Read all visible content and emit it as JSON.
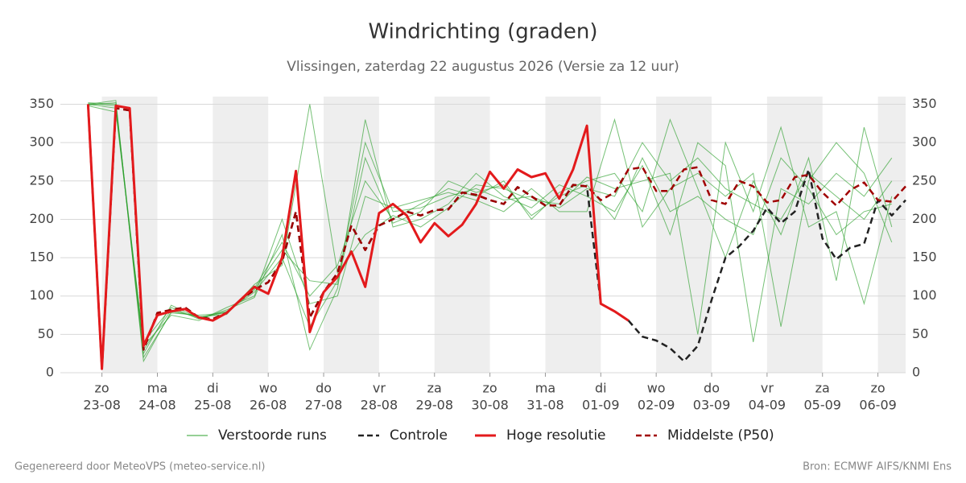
{
  "chart_data": {
    "type": "line",
    "title": "Windrichting (graden)",
    "subtitle": "Vlissingen, zaterdag 22 augustus 2026 (Versie za 12 uur)",
    "footer_left": "Gegenereerd door MeteoVPS (meteo-service.nl)",
    "footer_right": "Bron: ECMWF AIFS/KNMI Ens",
    "xlim": [
      -18,
      348
    ],
    "ylim": [
      0,
      360
    ],
    "yticks": [
      0,
      50,
      100,
      150,
      200,
      250,
      300,
      350
    ],
    "xticks": [
      {
        "value": 0,
        "label": "zo",
        "sublabel": "23-08"
      },
      {
        "value": 24,
        "label": "ma",
        "sublabel": "24-08"
      },
      {
        "value": 48,
        "label": "di",
        "sublabel": "25-08"
      },
      {
        "value": 72,
        "label": "wo",
        "sublabel": "26-08"
      },
      {
        "value": 96,
        "label": "do",
        "sublabel": "27-08"
      },
      {
        "value": 120,
        "label": "vr",
        "sublabel": "28-08"
      },
      {
        "value": 144,
        "label": "za",
        "sublabel": "29-08"
      },
      {
        "value": 168,
        "label": "zo",
        "sublabel": "30-08"
      },
      {
        "value": 192,
        "label": "ma",
        "sublabel": "31-08"
      },
      {
        "value": 216,
        "label": "di",
        "sublabel": "01-09"
      },
      {
        "value": 240,
        "label": "wo",
        "sublabel": "02-09"
      },
      {
        "value": 264,
        "label": "do",
        "sublabel": "03-09"
      },
      {
        "value": 288,
        "label": "vr",
        "sublabel": "04-09"
      },
      {
        "value": 312,
        "label": "za",
        "sublabel": "05-09"
      },
      {
        "value": 336,
        "label": "zo",
        "sublabel": "06-09"
      }
    ],
    "grid": true,
    "ensemble": {
      "name": "Verstoorde runs",
      "color": "#2ca02c",
      "x": [
        -6,
        6,
        18,
        30,
        42,
        54,
        66,
        78,
        90,
        102,
        114,
        126,
        138,
        150,
        162,
        174,
        186,
        198,
        210,
        222,
        234,
        246,
        258,
        270,
        282,
        294,
        306,
        318,
        330,
        342
      ],
      "members": [
        [
          350,
          345,
          30,
          82,
          72,
          80,
          105,
          150,
          60,
          120,
          300,
          210,
          215,
          230,
          240,
          225,
          230,
          215,
          240,
          230,
          300,
          250,
          280,
          240,
          220,
          200,
          260,
          230,
          200,
          250
        ],
        [
          352,
          350,
          20,
          78,
          75,
          78,
          110,
          170,
          100,
          140,
          250,
          200,
          220,
          240,
          230,
          250,
          200,
          235,
          250,
          260,
          210,
          330,
          240,
          150,
          250,
          180,
          280,
          120,
          320,
          190
        ],
        [
          348,
          340,
          40,
          85,
          70,
          82,
          98,
          180,
          30,
          110,
          330,
          190,
          200,
          220,
          260,
          230,
          215,
          245,
          230,
          210,
          270,
          180,
          300,
          270,
          40,
          240,
          220,
          260,
          230,
          280
        ],
        [
          350,
          355,
          15,
          80,
          73,
          76,
          115,
          140,
          350,
          130,
          180,
          205,
          190,
          215,
          245,
          240,
          225,
          220,
          255,
          240,
          250,
          260,
          50,
          300,
          210,
          320,
          190,
          210,
          90,
          230
        ],
        [
          351,
          348,
          35,
          75,
          68,
          85,
          100,
          200,
          90,
          100,
          230,
          215,
          225,
          235,
          225,
          210,
          240,
          210,
          210,
          330,
          190,
          240,
          260,
          230,
          260,
          60,
          250,
          300,
          260,
          170
        ],
        [
          349,
          352,
          25,
          88,
          71,
          79,
          108,
          160,
          120,
          115,
          280,
          195,
          210,
          250,
          235,
          245,
          205,
          230,
          245,
          200,
          280,
          210,
          230,
          200,
          180,
          280,
          240,
          180,
          210,
          220
        ]
      ]
    },
    "x": [
      -6,
      0,
      6,
      12,
      18,
      24,
      30,
      36,
      42,
      48,
      54,
      60,
      66,
      72,
      78,
      84,
      90,
      96,
      102,
      108,
      114,
      120,
      126,
      132,
      138,
      144,
      150,
      156,
      162,
      168,
      174,
      180,
      186,
      192,
      198,
      204,
      210,
      216,
      222,
      228,
      234,
      240,
      246,
      252,
      258,
      264,
      270,
      276,
      282,
      288,
      294,
      300,
      306,
      312,
      318,
      324,
      330,
      336,
      342,
      348
    ],
    "series": [
      {
        "name": "Controle",
        "color": "#222222",
        "dashed": true,
        "values": [
          350,
          5,
          345,
          342,
          30,
          78,
          82,
          85,
          72,
          70,
          78,
          95,
          108,
          118,
          145,
          210,
          72,
          105,
          130,
          192,
          160,
          192,
          200,
          210,
          205,
          212,
          213,
          235,
          232,
          225,
          220,
          242,
          230,
          218,
          218,
          245,
          243,
          90,
          80,
          68,
          47,
          42,
          32,
          15,
          35,
          95,
          150,
          165,
          185,
          215,
          195,
          210,
          265,
          175,
          148,
          163,
          168,
          225,
          205,
          225
        ]
      },
      {
        "name": "Hoge resolutie",
        "color": "#e31a1c",
        "dashed": false,
        "values": [
          350,
          5,
          348,
          345,
          35,
          75,
          80,
          83,
          72,
          68,
          78,
          95,
          112,
          103,
          150,
          263,
          53,
          105,
          125,
          158,
          112,
          208,
          220,
          205,
          170,
          195,
          178,
          193,
          220,
          262,
          240,
          265,
          255,
          260,
          227,
          265,
          322,
          90,
          80,
          68,
          null,
          null,
          null,
          null,
          null,
          null,
          null,
          null,
          null,
          null,
          null,
          null,
          null,
          null,
          null,
          null,
          null,
          null,
          null,
          null
        ]
      },
      {
        "name": "Middelste (P50)",
        "color": "#a00000",
        "dashed": true,
        "values": [
          350,
          5,
          345,
          342,
          30,
          78,
          82,
          85,
          72,
          70,
          78,
          95,
          108,
          118,
          145,
          210,
          72,
          105,
          130,
          192,
          160,
          192,
          200,
          210,
          205,
          212,
          213,
          235,
          232,
          225,
          220,
          242,
          230,
          218,
          218,
          245,
          243,
          225,
          235,
          265,
          268,
          237,
          237,
          265,
          268,
          225,
          220,
          250,
          243,
          222,
          225,
          255,
          258,
          235,
          218,
          238,
          248,
          225,
          223,
          243
        ]
      }
    ]
  }
}
